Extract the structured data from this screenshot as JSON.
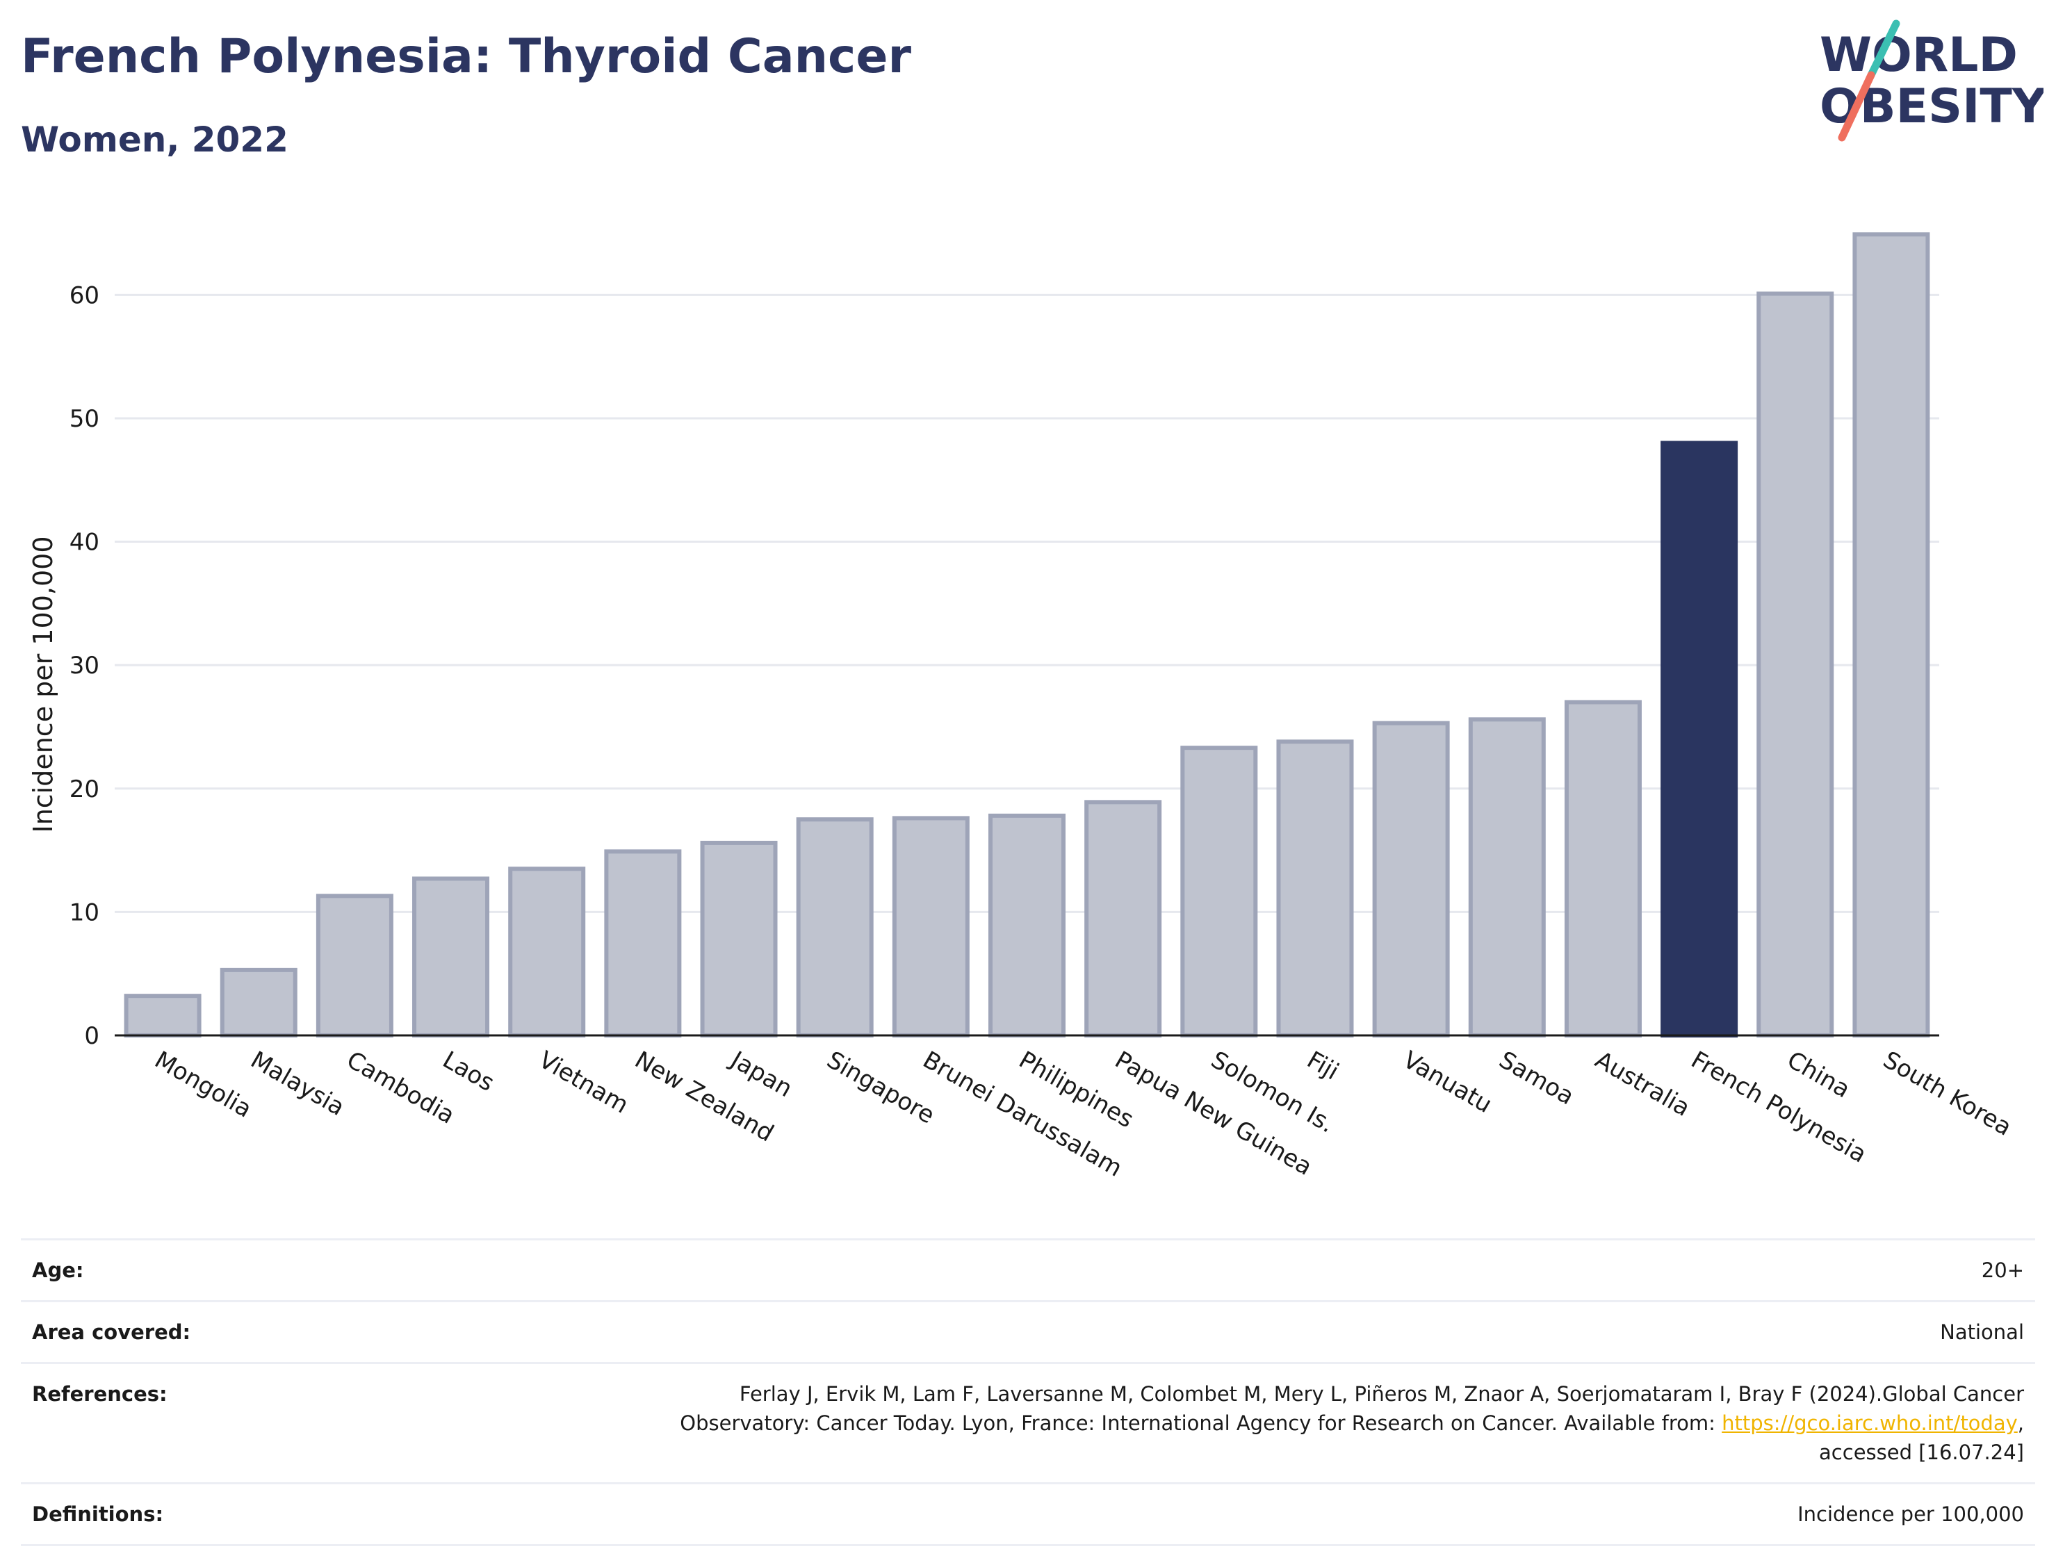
{
  "header": {
    "title": "French Polynesia: Thyroid Cancer",
    "subtitle": "Women, 2022"
  },
  "logo": {
    "line1": "WORLD",
    "line2": "OBESITY"
  },
  "colors": {
    "highlight": "#2a3560",
    "bar": "#bfc3cf",
    "bar_border": "#9ea4b8",
    "title": "#2c3561",
    "logo_teal": "#3bbfb2",
    "logo_coral": "#ef6f5e",
    "link": "#f0b400"
  },
  "chart_data": {
    "type": "bar",
    "ylabel": "Incidence per 100,000",
    "categories": [
      "Mongolia",
      "Malaysia",
      "Cambodia",
      "Laos",
      "Vietnam",
      "New Zealand",
      "Japan",
      "Singapore",
      "Brunei Darussalam",
      "Philippines",
      "Papua New Guinea",
      "Solomon Is.",
      "Fiji",
      "Vanuatu",
      "Samoa",
      "Australia",
      "French Polynesia",
      "China",
      "South Korea"
    ],
    "values": [
      3.2,
      5.3,
      11.3,
      12.7,
      13.5,
      14.9,
      15.6,
      17.5,
      17.6,
      17.8,
      18.9,
      23.3,
      23.8,
      25.3,
      25.6,
      27.0,
      48.0,
      60.1,
      64.9
    ],
    "highlight": "French Polynesia",
    "ylim": [
      0,
      67
    ],
    "yticks": [
      0,
      10,
      20,
      30,
      40,
      50,
      60
    ],
    "grid": true,
    "legend": "none"
  },
  "info": {
    "age_label": "Age:",
    "age_value": "20+",
    "area_label": "Area covered:",
    "area_value": "National",
    "references_label": "References:",
    "references_text_1": "Ferlay J, Ervik M, Lam F, Laversanne M, Colombet M, Mery L, Piñeros M, Znaor A, Soerjomataram I, Bray F (2024).Global Cancer",
    "references_text_2": "Observatory: Cancer Today. Lyon, France: International Agency for Research on Cancer. Available from: ",
    "references_link": "https://gco.iarc.who.int/today",
    "references_text_3": ",",
    "references_text_4": "accessed [16.07.24]",
    "definitions_label": "Definitions:",
    "definitions_value": "Incidence per 100,000"
  }
}
